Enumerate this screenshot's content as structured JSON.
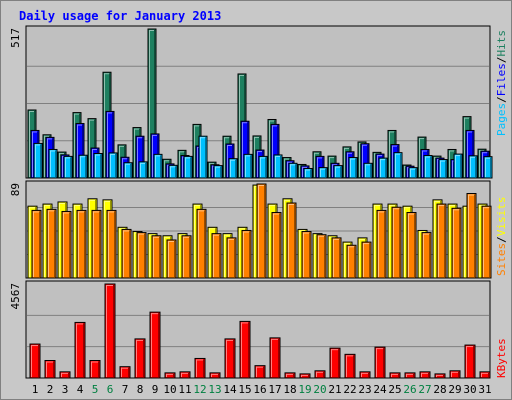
{
  "title": "Daily usage for January 2013",
  "colors": {
    "hits": "#1e8060",
    "files": "#0000ff",
    "pages": "#00c0ff",
    "visits": "#ffff00",
    "sites": "#ff8000",
    "kbytes": "#ff0000",
    "weekend_label": "#008040",
    "panel_bg": "#c0c0c0"
  },
  "legend": {
    "top": {
      "pages": "Pages",
      "sep1": "/",
      "files": "Files",
      "sep2": "/",
      "hits": "Hits"
    },
    "middle": {
      "sites": "Sites",
      "sep": "/",
      "visits": "Visits"
    },
    "bottom": {
      "kbytes": "KBytes"
    }
  },
  "axis_max_labels": {
    "top": "517",
    "middle": "89",
    "bottom": "4567"
  },
  "chart_data": [
    {
      "type": "bar",
      "name": "hits-files-pages",
      "categories": [
        "1",
        "2",
        "3",
        "4",
        "5",
        "6",
        "7",
        "8",
        "9",
        "10",
        "11",
        "12",
        "13",
        "14",
        "15",
        "16",
        "17",
        "18",
        "19",
        "20",
        "21",
        "22",
        "23",
        "24",
        "25",
        "26",
        "27",
        "28",
        "29",
        "30",
        "31"
      ],
      "weekend_days": [
        "5",
        "6",
        "12",
        "13",
        "19",
        "20",
        "26",
        "27"
      ],
      "ylim": [
        0,
        517
      ],
      "series": [
        {
          "name": "Hits",
          "values": [
            236,
            150,
            90,
            227,
            206,
            367,
            115,
            175,
            517,
            65,
            96,
            186,
            55,
            145,
            361,
            146,
            203,
            71,
            47,
            91,
            76,
            108,
            125,
            89,
            165,
            45,
            142,
            76,
            99,
            213,
            100
          ]
        },
        {
          "name": "Files",
          "values": [
            165,
            141,
            80,
            189,
            104,
            231,
            72,
            145,
            153,
            49,
            78,
            111,
            46,
            118,
            197,
            97,
            186,
            60,
            42,
            75,
            51,
            91,
            119,
            83,
            116,
            41,
            99,
            69,
            64,
            165,
            93
          ]
        },
        {
          "name": "Pages",
          "values": [
            120,
            99,
            75,
            79,
            85,
            87,
            53,
            56,
            82,
            44,
            75,
            145,
            43,
            67,
            82,
            75,
            80,
            51,
            33,
            36,
            43,
            71,
            51,
            69,
            88,
            36,
            78,
            64,
            83,
            77,
            74
          ]
        }
      ]
    },
    {
      "type": "bar",
      "name": "visits-sites",
      "categories": [
        "1",
        "2",
        "3",
        "4",
        "5",
        "6",
        "7",
        "8",
        "9",
        "10",
        "11",
        "12",
        "13",
        "14",
        "15",
        "16",
        "17",
        "18",
        "19",
        "20",
        "21",
        "22",
        "23",
        "24",
        "25",
        "26",
        "27",
        "28",
        "29",
        "30",
        "31"
      ],
      "ylim": [
        0,
        89
      ],
      "series": [
        {
          "name": "Visits",
          "values": [
            68,
            70,
            72,
            70,
            75,
            74,
            48,
            44,
            42,
            40,
            42,
            70,
            48,
            42,
            48,
            88,
            70,
            75,
            46,
            42,
            40,
            34,
            38,
            70,
            70,
            68,
            45,
            74,
            70,
            68,
            70
          ]
        },
        {
          "name": "Sites",
          "values": [
            64,
            65,
            63,
            64,
            64,
            64,
            46,
            43,
            40,
            36,
            40,
            65,
            42,
            38,
            45,
            89,
            62,
            71,
            44,
            41,
            38,
            31,
            34,
            64,
            67,
            62,
            43,
            70,
            66,
            80,
            68
          ]
        }
      ]
    },
    {
      "type": "bar",
      "name": "kbytes",
      "categories": [
        "1",
        "2",
        "3",
        "4",
        "5",
        "6",
        "7",
        "8",
        "9",
        "10",
        "11",
        "12",
        "13",
        "14",
        "15",
        "16",
        "17",
        "18",
        "19",
        "20",
        "21",
        "22",
        "23",
        "24",
        "25",
        "26",
        "27",
        "28",
        "29",
        "30",
        "31"
      ],
      "ylim": [
        0,
        4567
      ],
      "series": [
        {
          "name": "KBytes",
          "values": [
            1650,
            850,
            300,
            2700,
            850,
            4567,
            550,
            1900,
            3200,
            250,
            300,
            950,
            250,
            1900,
            2750,
            600,
            1950,
            250,
            200,
            350,
            1450,
            1150,
            300,
            1500,
            250,
            250,
            300,
            200,
            350,
            1600,
            300
          ]
        }
      ]
    }
  ]
}
